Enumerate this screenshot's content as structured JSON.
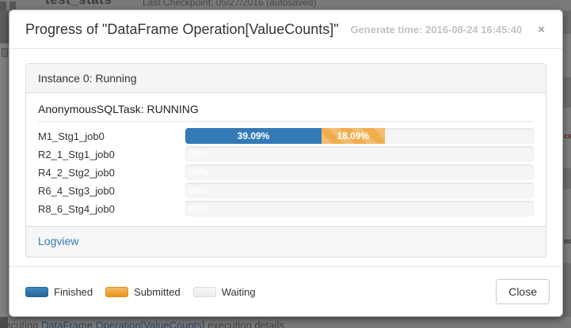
{
  "backdrop": {
    "notebook_title": "test_stats",
    "checkpoint_text": "Last Checkpoint: 05/27/2016 (autosaved)",
    "bottom_prefix": "xecuting ",
    "bottom_link": "DataFrame Operation[ValueCounts]",
    "bottom_suffix": " execution details",
    "right_fragment_1": "ce",
    "right_fragment_2": "no"
  },
  "modal": {
    "title": "Progress of \"DataFrame Operation[ValueCounts]\"",
    "generate_time": "Generate time: 2016-08-24 16:45:40",
    "close_icon": "×",
    "instance": {
      "header": "Instance 0: Running",
      "task_status": "AnonymousSQLTask: RUNNING",
      "jobs": [
        {
          "name": "M1_Stg1_job0",
          "finished": "39.09%",
          "submitted": "18.09%"
        },
        {
          "name": "R2_1_Stg1_job0",
          "finished": "0.00%"
        },
        {
          "name": "R4_2_Stg2_job0",
          "finished": "0.00%"
        },
        {
          "name": "R6_4_Stg3_job0",
          "finished": "0.00%"
        },
        {
          "name": "R8_6_Stg4_job0",
          "finished": "0.00%"
        }
      ],
      "logview_label": "Logview"
    },
    "legend": {
      "finished": "Finished",
      "submitted": "Submitted",
      "waiting": "Waiting"
    },
    "close_button": "Close"
  },
  "colors": {
    "finished": "#337ab7",
    "submitted": "#f0ad4e",
    "waiting": "#f5f5f5"
  }
}
